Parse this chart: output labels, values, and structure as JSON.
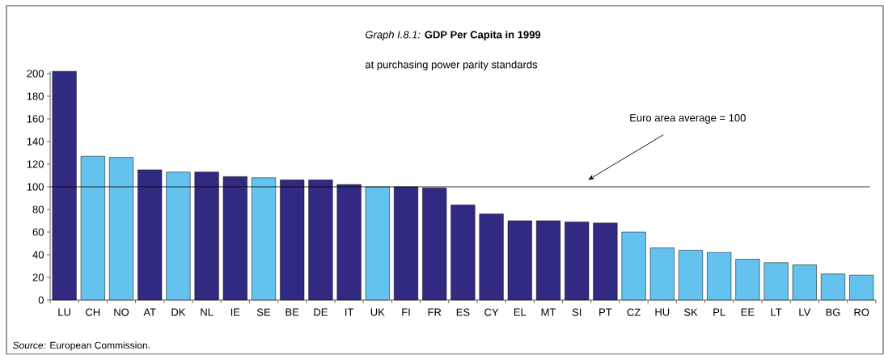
{
  "chart_data": {
    "type": "bar",
    "title": "*Graph I.8.1:* **GDP Per Capita in 1999**",
    "subtitle": "at purchasing power parity standards",
    "annotations": [
      "*Source:* European Commission."
    ],
    "categories": [
      "LU",
      "CH",
      "NO",
      "AT",
      "DK",
      "NL",
      "IE",
      "SE",
      "BE",
      "DE",
      "IT",
      "UK",
      "FI",
      "FR",
      "ES",
      "CY",
      "EL",
      "MT",
      "SI",
      "PT",
      "CZ",
      "HU",
      "SK",
      "PL",
      "EE",
      "LT",
      "LV",
      "BG",
      "RO"
    ],
    "values": [
      202,
      127,
      126,
      115,
      113,
      113,
      109,
      108,
      106,
      106,
      102,
      100,
      100,
      99,
      84,
      76,
      70,
      70,
      69,
      68,
      60,
      46,
      44,
      42,
      36,
      33,
      31,
      23,
      22
    ],
    "colors": [
      "#312a82",
      "#63c3ee",
      "#63c3ee",
      "#312a82",
      "#63c3ee",
      "#312a82",
      "#312a82",
      "#63c3ee",
      "#312a82",
      "#312a82",
      "#312a82",
      "#63c3ee",
      "#312a82",
      "#312a82",
      "#312a82",
      "#312a82",
      "#312a82",
      "#312a82",
      "#312a82",
      "#312a82",
      "#63c3ee",
      "#63c3ee",
      "#63c3ee",
      "#63c3ee",
      "#63c3ee",
      "#63c3ee",
      "#63c3ee",
      "#63c3ee",
      "#63c3ee"
    ],
    "ylim": [
      0,
      202
    ],
    "yticks": [
      0,
      20,
      40,
      60,
      80,
      100,
      120,
      140,
      160,
      180,
      200
    ],
    "ref_lines": [
      {
        "axis": "y",
        "value": 100,
        "label": "Euro area average = 100",
        "color": "#000000"
      }
    ]
  }
}
